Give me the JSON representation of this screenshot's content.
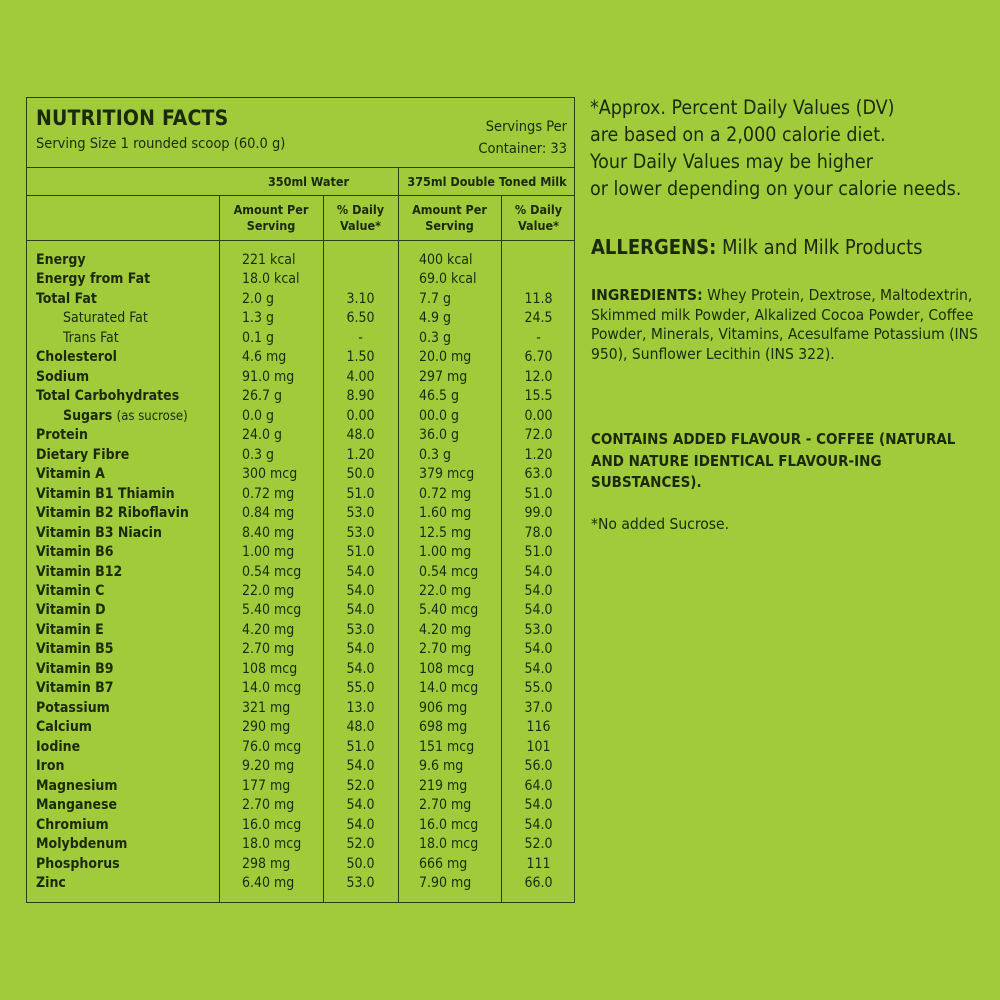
{
  "header": {
    "title": "NUTRITION FACTS",
    "serving_size": "Serving Size 1 rounded scoop (60.0 g)",
    "servings_line1": "Servings Per",
    "servings_line2": "Container: 33"
  },
  "columns": {
    "group1": "350ml Water",
    "group2": "375ml Double Toned Milk",
    "amount_line1": "Amount Per",
    "amount_line2": "Serving",
    "dv_line1": "% Daily",
    "dv_line2": "Value*"
  },
  "rows": [
    {
      "name": "Energy",
      "water_amount": "221  kcal",
      "water_dv": "",
      "milk_amount": "400 kcal",
      "milk_dv": ""
    },
    {
      "name": "Energy from Fat",
      "water_amount": "18.0 kcal",
      "water_dv": "",
      "milk_amount": "69.0 kcal",
      "milk_dv": ""
    },
    {
      "name": "Total Fat",
      "water_amount": "2.0 g",
      "water_dv": "3.10",
      "milk_amount": "7.7 g",
      "milk_dv": "11.8"
    },
    {
      "name": "Saturated Fat",
      "style": "indent",
      "water_amount": "1.3 g",
      "water_dv": "6.50",
      "milk_amount": "4.9 g",
      "milk_dv": "24.5"
    },
    {
      "name": "Trans Fat",
      "style": "indent",
      "water_amount": "0.1 g",
      "water_dv": "-",
      "milk_amount": "0.3 g",
      "milk_dv": "-"
    },
    {
      "name": "Cholesterol",
      "water_amount": "4.6 mg",
      "water_dv": "1.50",
      "milk_amount": "20.0 mg",
      "milk_dv": "6.70"
    },
    {
      "name": "Sodium",
      "water_amount": "91.0 mg",
      "water_dv": "4.00",
      "milk_amount": "297 mg",
      "milk_dv": "12.0"
    },
    {
      "name": "Total Carbohydrates",
      "water_amount": "26.7 g",
      "water_dv": "8.90",
      "milk_amount": "46.5 g",
      "milk_dv": "15.5"
    },
    {
      "name": "Sugars",
      "note": "(as sucrose)",
      "style": "indent-bold",
      "water_amount": "0.0 g",
      "water_dv": "0.00",
      "milk_amount": "00.0 g",
      "milk_dv": "0.00"
    },
    {
      "name": "Protein",
      "water_amount": "24.0 g",
      "water_dv": "48.0",
      "milk_amount": "36.0 g",
      "milk_dv": "72.0"
    },
    {
      "name": "Dietary Fibre",
      "water_amount": "0.3 g",
      "water_dv": "1.20",
      "milk_amount": "0.3 g",
      "milk_dv": "1.20"
    },
    {
      "name": "Vitamin A",
      "water_amount": "300 mcg",
      "water_dv": "50.0",
      "milk_amount": "379 mcg",
      "milk_dv": "63.0"
    },
    {
      "name": "Vitamin B1 Thiamin",
      "water_amount": "0.72 mg",
      "water_dv": "51.0",
      "milk_amount": "0.72 mg",
      "milk_dv": "51.0"
    },
    {
      "name": "Vitamin B2 Riboflavin",
      "water_amount": "0.84 mg",
      "water_dv": "53.0",
      "milk_amount": "1.60 mg",
      "milk_dv": "99.0"
    },
    {
      "name": "Vitamin B3 Niacin",
      "water_amount": "8.40 mg",
      "water_dv": "53.0",
      "milk_amount": "12.5 mg",
      "milk_dv": "78.0"
    },
    {
      "name": "Vitamin B6",
      "water_amount": "1.00 mg",
      "water_dv": "51.0",
      "milk_amount": "1.00 mg",
      "milk_dv": "51.0"
    },
    {
      "name": "Vitamin B12",
      "water_amount": "0.54 mcg",
      "water_dv": "54.0",
      "milk_amount": "0.54 mcg",
      "milk_dv": "54.0"
    },
    {
      "name": "Vitamin C",
      "water_amount": "22.0 mg",
      "water_dv": "54.0",
      "milk_amount": "22.0 mg",
      "milk_dv": "54.0"
    },
    {
      "name": "Vitamin D",
      "water_amount": "5.40 mcg",
      "water_dv": "54.0",
      "milk_amount": "5.40 mcg",
      "milk_dv": "54.0"
    },
    {
      "name": "Vitamin E",
      "water_amount": "4.20 mg",
      "water_dv": "53.0",
      "milk_amount": "4.20 mg",
      "milk_dv": "53.0"
    },
    {
      "name": "Vitamin B5",
      "water_amount": "2.70 mg",
      "water_dv": "54.0",
      "milk_amount": "2.70 mg",
      "milk_dv": "54.0"
    },
    {
      "name": "Vitamin B9",
      "water_amount": "108 mcg",
      "water_dv": "54.0",
      "milk_amount": "108 mcg",
      "milk_dv": "54.0"
    },
    {
      "name": "Vitamin B7",
      "water_amount": "14.0 mcg",
      "water_dv": "55.0",
      "milk_amount": "14.0 mcg",
      "milk_dv": "55.0"
    },
    {
      "name": "Potassium",
      "water_amount": "321 mg",
      "water_dv": "13.0",
      "milk_amount": "906 mg",
      "milk_dv": "37.0"
    },
    {
      "name": "Calcium",
      "water_amount": "290 mg",
      "water_dv": "48.0",
      "milk_amount": "698 mg",
      "milk_dv": "116"
    },
    {
      "name": "Iodine",
      "water_amount": "76.0 mcg",
      "water_dv": "51.0",
      "milk_amount": "151 mcg",
      "milk_dv": "101"
    },
    {
      "name": "Iron",
      "water_amount": "9.20 mg",
      "water_dv": "54.0",
      "milk_amount": "9.6 mg",
      "milk_dv": "56.0"
    },
    {
      "name": "Magnesium",
      "water_amount": "177 mg",
      "water_dv": "52.0",
      "milk_amount": "219 mg",
      "milk_dv": "64.0"
    },
    {
      "name": "Manganese",
      "water_amount": "2.70 mg",
      "water_dv": "54.0",
      "milk_amount": "2.70 mg",
      "milk_dv": "54.0"
    },
    {
      "name": "Chromium",
      "water_amount": "16.0 mcg",
      "water_dv": "54.0",
      "milk_amount": "16.0 mcg",
      "milk_dv": "54.0"
    },
    {
      "name": "Molybdenum",
      "water_amount": "18.0 mcg",
      "water_dv": "52.0",
      "milk_amount": "18.0 mcg",
      "milk_dv": "52.0"
    },
    {
      "name": "Phosphorus",
      "water_amount": "298 mg",
      "water_dv": "50.0",
      "milk_amount": "666 mg",
      "milk_dv": "111"
    },
    {
      "name": "Zinc",
      "water_amount": "6.40 mg",
      "water_dv": "53.0",
      "milk_amount": "7.90 mg",
      "milk_dv": "66.0"
    }
  ],
  "side": {
    "dv_note": [
      "*Approx. Percent Daily Values (DV)",
      "are based on a 2,000 calorie diet.",
      "Your Daily Values may be higher",
      "or lower depending on your calorie needs."
    ],
    "allergens_label": "ALLERGENS:",
    "allergens_text": " Milk and Milk Products",
    "ingredients_label": "INGREDIENTS:",
    "ingredients_text": " Whey Protein, Dextrose, Maltodextrin, Skimmed milk Powder, Alkalized Cocoa Powder, Coffee Powder, Minerals, Vitamins, Acesulfame Potassium (INS 950), Sunflower Lecithin (INS 322).",
    "contains": "CONTAINS ADDED FLAVOUR - COFFEE (NATURAL AND NATURE IDENTICAL FLAVOUR-ING SUBSTANCES).",
    "no_sucrose": "*No added Sucrose."
  },
  "colors": {
    "background": "#a2cb3b",
    "text": "#1b2a0c",
    "border": "#2b3d14"
  }
}
